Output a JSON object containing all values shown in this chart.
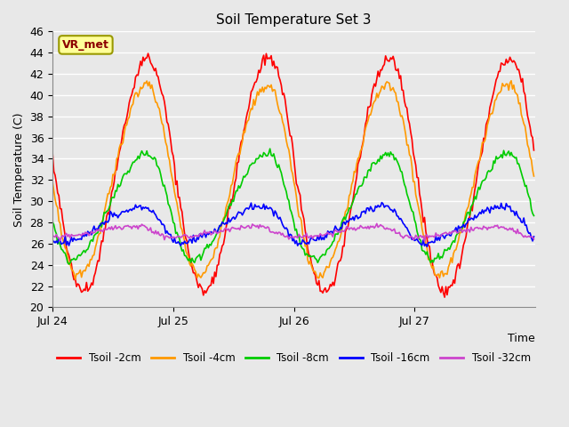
{
  "title": "Soil Temperature Set 3",
  "xlabel": "Time",
  "ylabel": "Soil Temperature (C)",
  "ylim": [
    20,
    46
  ],
  "yticks": [
    20,
    22,
    24,
    26,
    28,
    30,
    32,
    34,
    36,
    38,
    40,
    42,
    44,
    46
  ],
  "xtick_labels": [
    "Jul 24",
    "Jul 25",
    "Jul 26",
    "Jul 27"
  ],
  "xtick_positions": [
    0,
    96,
    192,
    288
  ],
  "xlim": [
    0,
    384
  ],
  "series_colors": [
    "#FF0000",
    "#FF9900",
    "#00CC00",
    "#0000FF",
    "#CC44CC"
  ],
  "series_labels": [
    "Tsoil -2cm",
    "Tsoil -4cm",
    "Tsoil -8cm",
    "Tsoil -16cm",
    "Tsoil -32cm"
  ],
  "bg_color": "#E8E8E8",
  "annotation_text": "VR_met",
  "annotation_bg": "#FFFF99",
  "annotation_border": "#999900",
  "lw": 1.2
}
